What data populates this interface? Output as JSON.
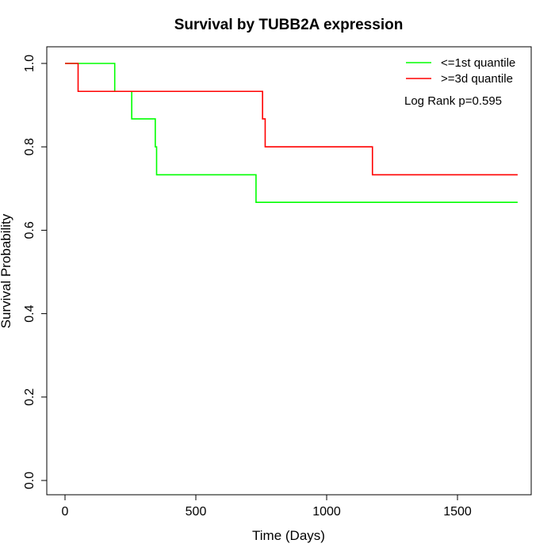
{
  "chart_data": {
    "type": "line",
    "step": true,
    "title": "Survival by TUBB2A expression",
    "xlabel": "Time (Days)",
    "ylabel": "Survival Probability",
    "xlim": [
      0,
      1800
    ],
    "ylim": [
      0,
      1.0
    ],
    "xticks": [
      0,
      500,
      1000,
      1500
    ],
    "xtick_labels": [
      "0",
      "500",
      "1000",
      "1500"
    ],
    "yticks": [
      0,
      0.2,
      0.4,
      0.6,
      0.8,
      1.0
    ],
    "ytick_labels": [
      "0.0",
      "0.2",
      "0.4",
      "0.6",
      "0.8",
      "1.0"
    ],
    "grid": false,
    "legend_position": "top-right",
    "annotation": "Log Rank p=0.595",
    "series": [
      {
        "name": "<=1st quantile",
        "color": "#00ff00",
        "x": [
          0,
          190,
          255,
          345,
          350,
          730,
          1730
        ],
        "y": [
          1.0,
          0.933,
          0.867,
          0.8,
          0.733,
          0.667,
          0.667
        ]
      },
      {
        "name": ">=3d quantile",
        "color": "#ff0000",
        "x": [
          0,
          50,
          755,
          765,
          1175,
          1730
        ],
        "y": [
          1.0,
          0.933,
          0.867,
          0.8,
          0.733,
          0.733
        ]
      }
    ]
  }
}
